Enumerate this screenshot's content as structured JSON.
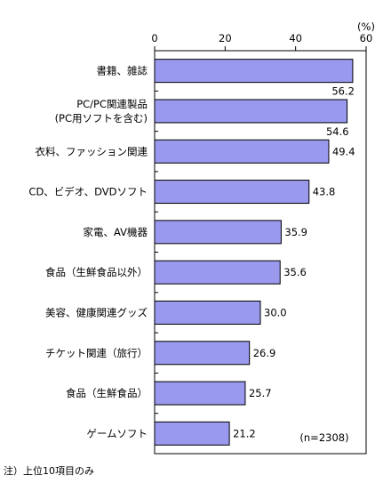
{
  "chart_data": {
    "type": "bar",
    "orientation": "horizontal",
    "unit": "(%)",
    "categories": [
      [
        "書籍、雑誌"
      ],
      [
        "PC/PC関連製品",
        "(PC用ソフトを含む)"
      ],
      [
        "衣料、ファッション関連"
      ],
      [
        "CD、ビデオ、DVDソフト"
      ],
      [
        "家電、AV機器"
      ],
      [
        "食品（生鮮食品以外）"
      ],
      [
        "美容、健康関連グッズ"
      ],
      [
        "チケット関連（旅行）"
      ],
      [
        "食品（生鮮食品）"
      ],
      [
        "ゲームソフト"
      ]
    ],
    "values": [
      56.2,
      54.6,
      49.4,
      43.8,
      35.9,
      35.6,
      30.0,
      26.9,
      25.7,
      21.2
    ],
    "value_labels": [
      "56.2",
      "54.6",
      "49.4",
      "43.8",
      "35.9",
      "35.6",
      "30.0",
      "26.9",
      "25.7",
      "21.2"
    ],
    "xlim": [
      0,
      60
    ],
    "xticks": [
      0,
      20,
      40,
      60
    ],
    "bar_color": "#9999ee",
    "bar_edge_color": "#000000",
    "sample_label": "(n=2308)"
  },
  "footnote": "注）上位10項目のみ"
}
